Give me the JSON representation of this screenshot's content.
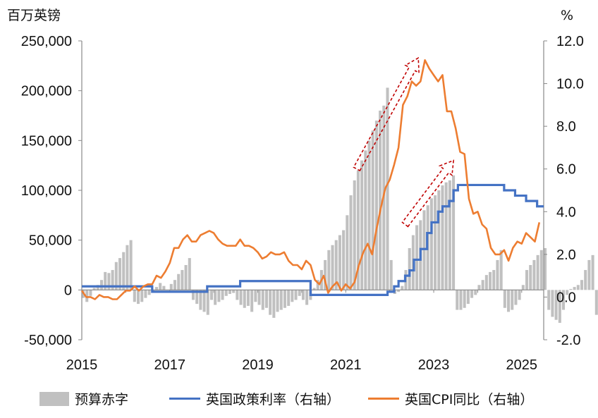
{
  "chart_data": {
    "type": "bar+line",
    "left_axis_unit": "百万英镑",
    "right_axis_unit": "%",
    "y_left": {
      "min": -50000,
      "max": 250000,
      "ticks": [
        "250,000",
        "200,000",
        "150,000",
        "100,000",
        "50,000",
        "0",
        "-50,000"
      ],
      "tick_values": [
        250000,
        200000,
        150000,
        100000,
        50000,
        0,
        -50000
      ]
    },
    "y_right": {
      "min": -2,
      "max": 12,
      "ticks": [
        "12.0",
        "10.0",
        "8.0",
        "6.0",
        "4.0",
        "2.0",
        "0.0",
        "-2.0"
      ],
      "tick_values": [
        12,
        10,
        8,
        6,
        4,
        2,
        0,
        -2
      ]
    },
    "x": {
      "min": 2015.0,
      "max": 2025.5,
      "ticks": [
        "2015",
        "2017",
        "2019",
        "2021",
        "2023",
        "2025"
      ],
      "tick_values": [
        2015,
        2017,
        2019,
        2021,
        2023,
        2025
      ]
    },
    "colors": {
      "deficit": "#c0c0c0",
      "bank_rate": "#4472c4",
      "cpi": "#ed7d31",
      "arrow": "#c00000"
    },
    "series": [
      {
        "name": "预算赤字",
        "kind": "bar",
        "start": 2015.0,
        "step": 0.0833333,
        "values": [
          -8000,
          -12000,
          -6000,
          2000,
          5000,
          10000,
          18000,
          17000,
          20000,
          28000,
          32000,
          38000,
          45000,
          50000,
          -12000,
          -14000,
          -12000,
          -8000,
          -5000,
          -2000,
          3000,
          7000,
          4000,
          0,
          6000,
          10000,
          16000,
          20000,
          25000,
          32000,
          -10000,
          -14000,
          -20000,
          -22000,
          -25000,
          -10000,
          -15000,
          -12000,
          -10000,
          -6000,
          -4000,
          -3000,
          -10000,
          -15000,
          -18000,
          -16000,
          -22000,
          -12000,
          -15000,
          -20000,
          -18000,
          -25000,
          -28000,
          -22000,
          -20000,
          -18000,
          -16000,
          -12000,
          -10000,
          -6000,
          -10000,
          -15000,
          -10000,
          2000,
          10000,
          20000,
          30000,
          40000,
          45000,
          50000,
          55000,
          60000,
          75000,
          95000,
          110000,
          120000,
          130000,
          140000,
          150000,
          160000,
          170000,
          180000,
          185000,
          203000,
          30000,
          -4000,
          -2000,
          4000,
          20000,
          42000,
          55000,
          65000,
          70000,
          80000,
          85000,
          92000,
          95000,
          100000,
          105000,
          108000,
          110000,
          115000,
          -20000,
          -20000,
          -18000,
          -14000,
          -8000,
          -5000,
          5000,
          10000,
          15000,
          18000,
          20000,
          30000,
          40000,
          -18000,
          -22000,
          -20000,
          -15000,
          -10000,
          5000,
          20000,
          25000,
          30000,
          35000,
          40000,
          42000,
          -20000,
          -27000,
          -30000,
          -33000,
          -20000,
          -5000,
          1000,
          3000,
          5000,
          10000,
          20000,
          30000,
          35000,
          -25000,
          -27000,
          -30000,
          -20000
        ]
      },
      {
        "name": "英国政策利率（右轴）",
        "kind": "step",
        "points": [
          [
            2015.0,
            0.5
          ],
          [
            2016.6,
            0.25
          ],
          [
            2017.85,
            0.5
          ],
          [
            2018.6,
            0.75
          ],
          [
            2020.2,
            0.1
          ],
          [
            2021.95,
            0.25
          ],
          [
            2022.1,
            0.5
          ],
          [
            2022.2,
            0.75
          ],
          [
            2022.35,
            1.0
          ],
          [
            2022.45,
            1.25
          ],
          [
            2022.55,
            1.75
          ],
          [
            2022.7,
            2.25
          ],
          [
            2022.85,
            3.0
          ],
          [
            2022.95,
            3.5
          ],
          [
            2023.1,
            4.0
          ],
          [
            2023.2,
            4.25
          ],
          [
            2023.35,
            4.5
          ],
          [
            2023.45,
            5.0
          ],
          [
            2023.55,
            5.25
          ],
          [
            2024.6,
            5.0
          ],
          [
            2024.85,
            4.75
          ],
          [
            2025.1,
            4.5
          ],
          [
            2025.35,
            4.25
          ],
          [
            2025.5,
            4.25
          ]
        ]
      },
      {
        "name": "英国CPI同比（右轴）",
        "kind": "line",
        "points": [
          [
            2015.0,
            0.3
          ],
          [
            2015.1,
            0.0
          ],
          [
            2015.2,
            0.0
          ],
          [
            2015.3,
            -0.1
          ],
          [
            2015.4,
            0.1
          ],
          [
            2015.5,
            0.0
          ],
          [
            2015.6,
            0.0
          ],
          [
            2015.7,
            -0.1
          ],
          [
            2015.8,
            -0.1
          ],
          [
            2015.9,
            0.1
          ],
          [
            2016.0,
            0.3
          ],
          [
            2016.1,
            0.3
          ],
          [
            2016.2,
            0.5
          ],
          [
            2016.3,
            0.3
          ],
          [
            2016.4,
            0.5
          ],
          [
            2016.5,
            0.6
          ],
          [
            2016.6,
            0.6
          ],
          [
            2016.7,
            1.0
          ],
          [
            2016.8,
            0.9
          ],
          [
            2016.9,
            1.2
          ],
          [
            2017.0,
            1.6
          ],
          [
            2017.1,
            2.3
          ],
          [
            2017.2,
            2.3
          ],
          [
            2017.3,
            2.7
          ],
          [
            2017.4,
            2.9
          ],
          [
            2017.5,
            2.6
          ],
          [
            2017.6,
            2.6
          ],
          [
            2017.7,
            2.9
          ],
          [
            2017.8,
            3.0
          ],
          [
            2017.9,
            3.1
          ],
          [
            2018.0,
            3.0
          ],
          [
            2018.1,
            2.7
          ],
          [
            2018.2,
            2.5
          ],
          [
            2018.3,
            2.4
          ],
          [
            2018.4,
            2.4
          ],
          [
            2018.5,
            2.4
          ],
          [
            2018.6,
            2.7
          ],
          [
            2018.7,
            2.4
          ],
          [
            2018.8,
            2.4
          ],
          [
            2018.9,
            2.3
          ],
          [
            2019.0,
            2.1
          ],
          [
            2019.1,
            1.8
          ],
          [
            2019.2,
            1.9
          ],
          [
            2019.3,
            2.1
          ],
          [
            2019.4,
            2.0
          ],
          [
            2019.5,
            2.0
          ],
          [
            2019.6,
            2.1
          ],
          [
            2019.7,
            1.7
          ],
          [
            2019.8,
            1.5
          ],
          [
            2019.9,
            1.5
          ],
          [
            2020.0,
            1.3
          ],
          [
            2020.1,
            1.7
          ],
          [
            2020.2,
            1.5
          ],
          [
            2020.3,
            0.8
          ],
          [
            2020.4,
            0.6
          ],
          [
            2020.5,
            1.0
          ],
          [
            2020.6,
            0.2
          ],
          [
            2020.7,
            0.5
          ],
          [
            2020.8,
            0.7
          ],
          [
            2020.9,
            0.3
          ],
          [
            2021.0,
            0.6
          ],
          [
            2021.1,
            0.4
          ],
          [
            2021.2,
            0.7
          ],
          [
            2021.3,
            1.5
          ],
          [
            2021.4,
            2.1
          ],
          [
            2021.5,
            2.5
          ],
          [
            2021.6,
            2.0
          ],
          [
            2021.7,
            3.2
          ],
          [
            2021.8,
            4.2
          ],
          [
            2021.9,
            5.1
          ],
          [
            2022.0,
            5.5
          ],
          [
            2022.1,
            6.2
          ],
          [
            2022.2,
            7.0
          ],
          [
            2022.3,
            9.0
          ],
          [
            2022.4,
            9.4
          ],
          [
            2022.5,
            10.1
          ],
          [
            2022.6,
            9.9
          ],
          [
            2022.7,
            10.1
          ],
          [
            2022.8,
            11.1
          ],
          [
            2022.9,
            10.7
          ],
          [
            2023.0,
            10.4
          ],
          [
            2023.1,
            10.1
          ],
          [
            2023.2,
            10.4
          ],
          [
            2023.3,
            8.7
          ],
          [
            2023.4,
            8.7
          ],
          [
            2023.5,
            7.9
          ],
          [
            2023.6,
            6.8
          ],
          [
            2023.7,
            6.7
          ],
          [
            2023.8,
            4.6
          ],
          [
            2023.9,
            3.9
          ],
          [
            2024.0,
            4.0
          ],
          [
            2024.1,
            3.4
          ],
          [
            2024.2,
            3.2
          ],
          [
            2024.3,
            2.3
          ],
          [
            2024.4,
            2.0
          ],
          [
            2024.5,
            2.0
          ],
          [
            2024.6,
            2.2
          ],
          [
            2024.7,
            1.7
          ],
          [
            2024.8,
            2.3
          ],
          [
            2024.9,
            2.6
          ],
          [
            2025.0,
            2.5
          ],
          [
            2025.1,
            3.0
          ],
          [
            2025.2,
            2.8
          ],
          [
            2025.3,
            2.6
          ],
          [
            2025.4,
            3.5
          ]
        ]
      }
    ],
    "annotations": [
      {
        "type": "arrow",
        "from": [
          2021.25,
          6.0
        ],
        "to": [
          2022.65,
          11.2
        ]
      },
      {
        "type": "arrow",
        "from": [
          2022.35,
          3.4
        ],
        "to": [
          2023.45,
          6.4
        ]
      }
    ],
    "legend": {
      "position": "bottom",
      "items": [
        "预算赤字",
        "英国政策利率（右轴）",
        "英国CPI同比（右轴）"
      ]
    }
  }
}
